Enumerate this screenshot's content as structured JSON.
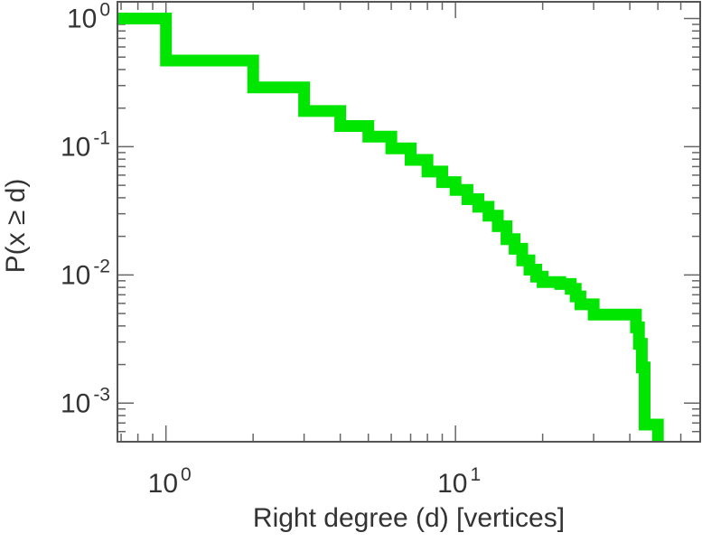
{
  "chart_data": {
    "type": "line",
    "subtype": "step (complementary cumulative distribution)",
    "xlabel": "Right degree (d) [vertices]",
    "ylabel": "P(x ≥ d)",
    "xscale": "log",
    "yscale": "log",
    "xlim": [
      0.68,
      70
    ],
    "ylim": [
      0.0005,
      1.35
    ],
    "x_ticks": [
      {
        "base": "10",
        "exp": "0",
        "value": 1
      },
      {
        "base": "10",
        "exp": "1",
        "value": 10
      }
    ],
    "y_ticks": [
      {
        "base": "10",
        "exp": "-3",
        "value": 0.001
      },
      {
        "base": "10",
        "exp": "-2",
        "value": 0.01
      },
      {
        "base": "10",
        "exp": "-1",
        "value": 0.1
      },
      {
        "base": "10",
        "exp": "0",
        "value": 1
      }
    ],
    "grid": false,
    "series": [
      {
        "color": "#00e600",
        "x": [
          0.68,
          1,
          2,
          3,
          4,
          5,
          6,
          7,
          8,
          9,
          10,
          11,
          12,
          13,
          14,
          15,
          16,
          17,
          18,
          19,
          20,
          23,
          25,
          26,
          27,
          30,
          42,
          43,
          44,
          45,
          50
        ],
        "y": [
          1,
          0.47,
          0.29,
          0.19,
          0.145,
          0.12,
          0.097,
          0.079,
          0.064,
          0.053,
          0.046,
          0.039,
          0.034,
          0.029,
          0.024,
          0.019,
          0.016,
          0.013,
          0.011,
          0.0097,
          0.0088,
          0.0085,
          0.0078,
          0.0068,
          0.0059,
          0.0049,
          0.0039,
          0.0029,
          0.0019,
          0.00068,
          0.0005
        ]
      }
    ]
  }
}
